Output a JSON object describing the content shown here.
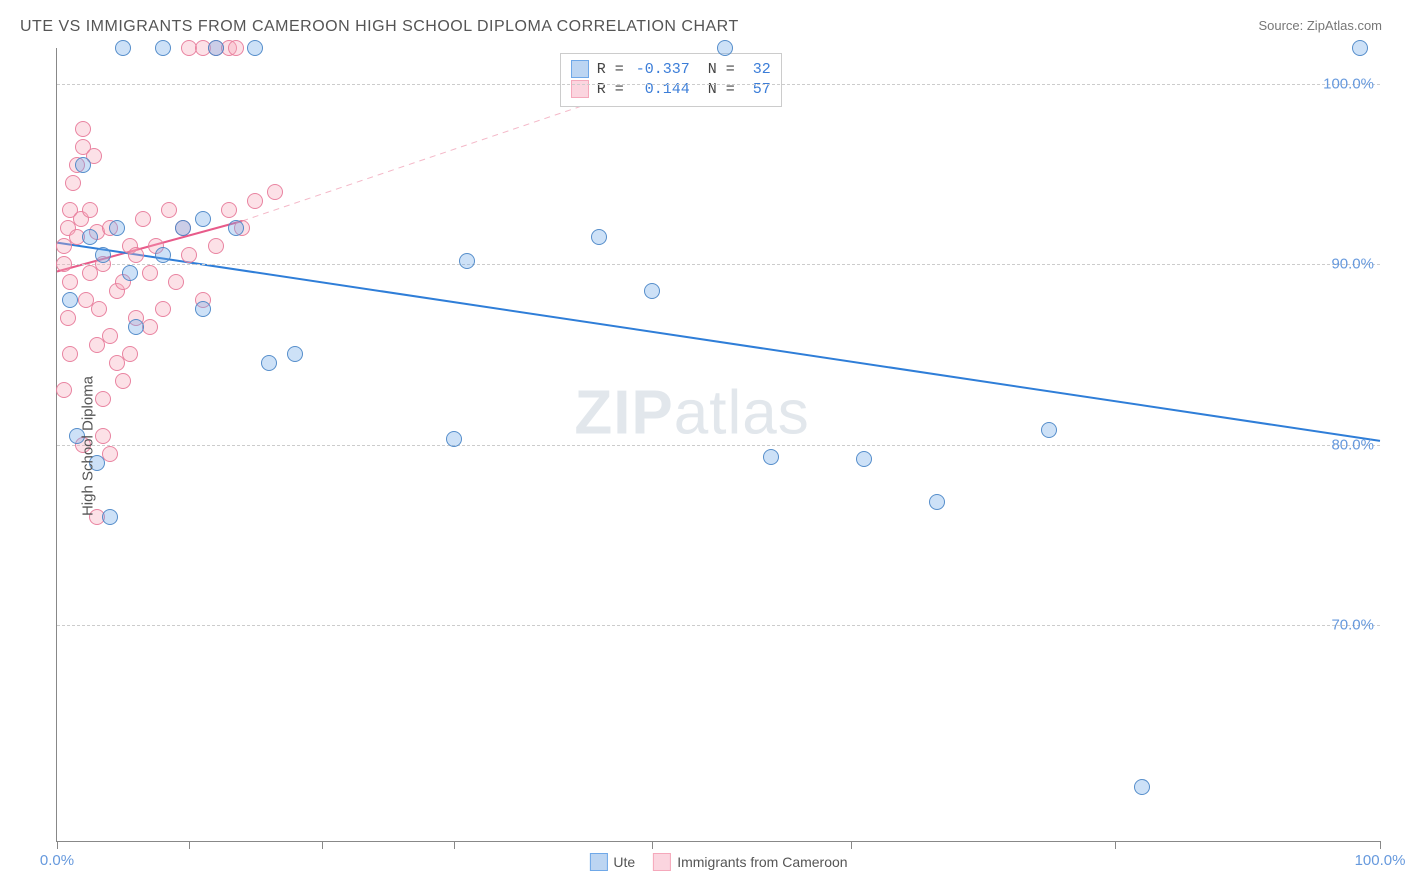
{
  "title": "UTE VS IMMIGRANTS FROM CAMEROON HIGH SCHOOL DIPLOMA CORRELATION CHART",
  "source": "Source: ZipAtlas.com",
  "ylabel": "High School Diploma",
  "watermark_a": "ZIP",
  "watermark_b": "atlas",
  "chart": {
    "type": "scatter",
    "xlim": [
      0,
      100
    ],
    "ylim": [
      58,
      102
    ],
    "y_gridlines": [
      70,
      80,
      90,
      100
    ],
    "y_tick_labels": [
      "70.0%",
      "80.0%",
      "90.0%",
      "100.0%"
    ],
    "x_ticks": [
      0,
      10,
      20,
      30,
      45,
      60,
      80,
      100
    ],
    "x_tick_labels": {
      "0": "0.0%",
      "100": "100.0%"
    },
    "grid_color": "#cccccc",
    "background_color": "#ffffff",
    "axis_color": "#888888",
    "tick_label_color": "#6699dd",
    "label_fontsize": 15,
    "title_fontsize": 16,
    "marker_radius": 8,
    "marker_fill_opacity": 0.35,
    "marker_stroke_opacity": 0.9,
    "series": [
      {
        "name": "Ute",
        "color": "#6fa8e8",
        "stroke": "#4a86c7",
        "R": "-0.337",
        "N": "32",
        "trend": {
          "x1": 0,
          "y1": 91.2,
          "x2": 100,
          "y2": 80.2,
          "color": "#2f7ed8",
          "width": 2,
          "dash": "none"
        },
        "points": [
          [
            1.5,
            80.5
          ],
          [
            3,
            79
          ],
          [
            4,
            76
          ],
          [
            2,
            95.5
          ],
          [
            5,
            102
          ],
          [
            8,
            102
          ],
          [
            12,
            102
          ],
          [
            15,
            102
          ],
          [
            3.5,
            90.5
          ],
          [
            5.5,
            89.5
          ],
          [
            8,
            90.5
          ],
          [
            9.5,
            92
          ],
          [
            6,
            86.5
          ],
          [
            11,
            92.5
          ],
          [
            13.5,
            92
          ],
          [
            11,
            87.5
          ],
          [
            16,
            84.5
          ],
          [
            18,
            85
          ],
          [
            31,
            90.2
          ],
          [
            30,
            80.3
          ],
          [
            41,
            91.5
          ],
          [
            45,
            88.5
          ],
          [
            50.5,
            102
          ],
          [
            54,
            79.3
          ],
          [
            61,
            79.2
          ],
          [
            66.5,
            76.8
          ],
          [
            75,
            80.8
          ],
          [
            82,
            61
          ],
          [
            98.5,
            102
          ],
          [
            2.5,
            91.5
          ],
          [
            4.5,
            92
          ],
          [
            1,
            88
          ]
        ]
      },
      {
        "name": "Immigrants from Cameroon",
        "color": "#f5a8bb",
        "stroke": "#e87b9a",
        "R": "0.144",
        "N": "57",
        "trend_solid": {
          "x1": 0,
          "y1": 89.6,
          "x2": 14,
          "y2": 92.4,
          "color": "#e85b8a",
          "width": 2
        },
        "trend_dash": {
          "x1": 14,
          "y1": 92.4,
          "x2": 51,
          "y2": 101.6,
          "color": "#f4b8c8",
          "width": 1,
          "dash": "6,5"
        },
        "points": [
          [
            0.5,
            91
          ],
          [
            0.8,
            92
          ],
          [
            0.5,
            90
          ],
          [
            1,
            89
          ],
          [
            1,
            93
          ],
          [
            1.2,
            94.5
          ],
          [
            1.5,
            91.5
          ],
          [
            1.8,
            92.5
          ],
          [
            1.5,
            95.5
          ],
          [
            2,
            96.5
          ],
          [
            2,
            97.5
          ],
          [
            2.2,
            88
          ],
          [
            2.5,
            89.5
          ],
          [
            2.5,
            93
          ],
          [
            2.8,
            96
          ],
          [
            3,
            91.8
          ],
          [
            3,
            85.5
          ],
          [
            3.2,
            87.5
          ],
          [
            3.5,
            90
          ],
          [
            3.5,
            82.5
          ],
          [
            3.5,
            80.5
          ],
          [
            4,
            92
          ],
          [
            4,
            86
          ],
          [
            4.5,
            88.5
          ],
          [
            4.5,
            84.5
          ],
          [
            5,
            83.5
          ],
          [
            5,
            89
          ],
          [
            5.5,
            91
          ],
          [
            5.5,
            85
          ],
          [
            6,
            90.5
          ],
          [
            6,
            87
          ],
          [
            6.5,
            92.5
          ],
          [
            7,
            86.5
          ],
          [
            7,
            89.5
          ],
          [
            7.5,
            91
          ],
          [
            8,
            87.5
          ],
          [
            8.5,
            93
          ],
          [
            9,
            89
          ],
          [
            9.5,
            92
          ],
          [
            10,
            102
          ],
          [
            11,
            102
          ],
          [
            12,
            102
          ],
          [
            13,
            102
          ],
          [
            13.5,
            102
          ],
          [
            10,
            90.5
          ],
          [
            11,
            88
          ],
          [
            12,
            91
          ],
          [
            13,
            93
          ],
          [
            14,
            92
          ],
          [
            15,
            93.5
          ],
          [
            16.5,
            94
          ],
          [
            3,
            76
          ],
          [
            2,
            80
          ],
          [
            1,
            85
          ],
          [
            0.8,
            87
          ],
          [
            0.5,
            83
          ],
          [
            4,
            79.5
          ]
        ]
      }
    ]
  },
  "legend": {
    "items": [
      {
        "label": "Ute",
        "fill": "#bcd5f2",
        "stroke": "#6fa8e8"
      },
      {
        "label": "Immigrants from Cameroon",
        "fill": "#fbd5df",
        "stroke": "#f5a8bb"
      }
    ]
  },
  "stats_box": {
    "rows": [
      {
        "fill": "#bcd5f2",
        "stroke": "#6fa8e8",
        "R_label": "R =",
        "R": "-0.337",
        "N_label": "N =",
        "N": "32"
      },
      {
        "fill": "#fbd5df",
        "stroke": "#f5a8bb",
        "R_label": "R =",
        "R": " 0.144",
        "N_label": "N =",
        "N": "57"
      }
    ]
  }
}
